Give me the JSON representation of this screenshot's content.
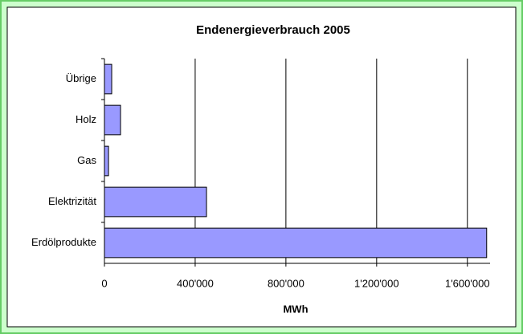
{
  "chart_data": {
    "type": "bar",
    "orientation": "horizontal",
    "title": "Endenergieverbrauch 2005",
    "x_label": "MWh",
    "categories": [
      "Übrige",
      "Holz",
      "Gas",
      "Elektrizität",
      "Erdölprodukte"
    ],
    "values": [
      32000,
      71000,
      18000,
      450000,
      1685000
    ],
    "color": "#9999ff",
    "xlim": [
      0,
      1700000
    ],
    "xticks": [
      0,
      {
        "value": 400000,
        "label": "400'000"
      },
      {
        "value": 800000,
        "label": "800'000"
      },
      {
        "value": 1200000,
        "label": "1'200'000"
      },
      {
        "value": 1600000,
        "label": "1'600'000"
      }
    ],
    "grid": true
  }
}
